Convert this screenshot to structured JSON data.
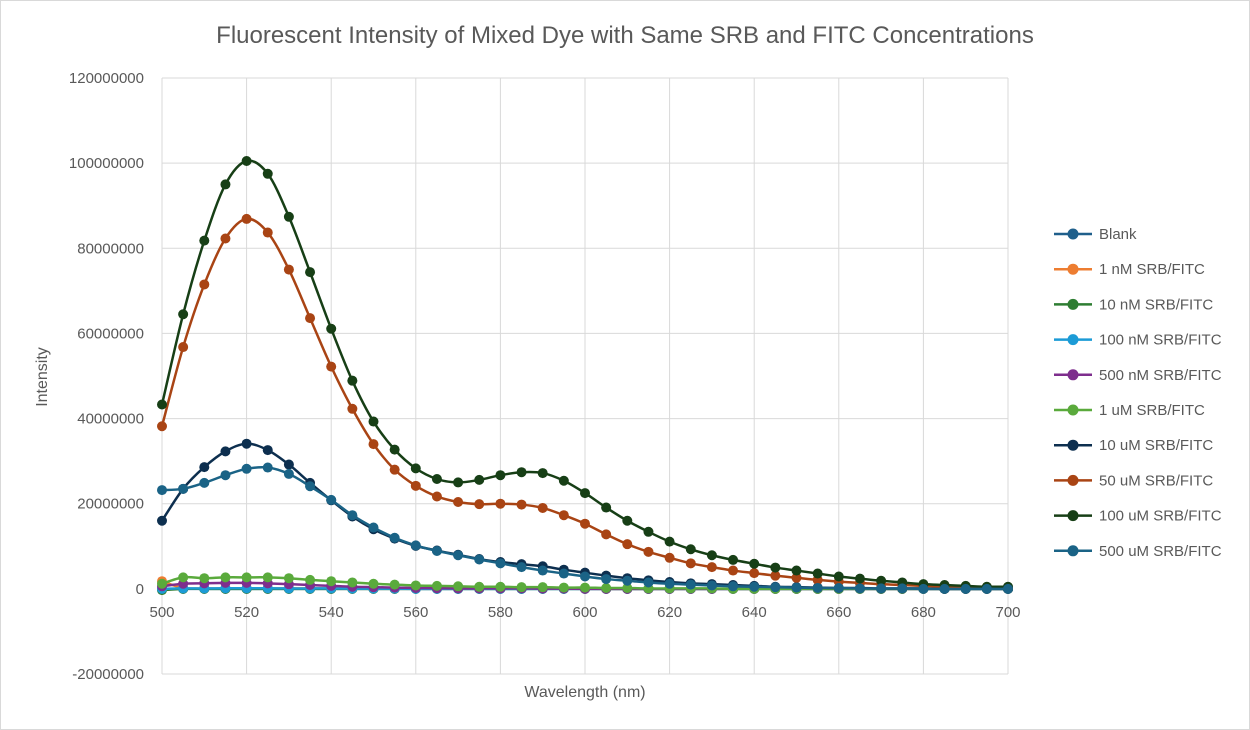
{
  "chart_data": {
    "type": "line",
    "title": "Fluorescent Intensity of Mixed Dye with Same SRB and FITC Concentrations",
    "xlabel": "Wavelength (nm)",
    "ylabel": "Intensity",
    "xlim": [
      500,
      700
    ],
    "ylim": [
      -20000000,
      120000000
    ],
    "xticks": [
      500,
      520,
      540,
      560,
      580,
      600,
      620,
      640,
      660,
      680,
      700
    ],
    "yticks": [
      -20000000,
      0,
      20000000,
      40000000,
      60000000,
      80000000,
      100000000,
      120000000
    ],
    "xtick_labels": [
      "500",
      "520",
      "540",
      "560",
      "580",
      "600",
      "620",
      "640",
      "660",
      "680",
      "700"
    ],
    "ytick_labels": [
      "-20000000",
      "0",
      "20000000",
      "40000000",
      "60000000",
      "80000000",
      "100000000",
      "120000000"
    ],
    "grid": true,
    "legend_position": "right",
    "x": [
      500,
      505,
      510,
      515,
      520,
      525,
      530,
      535,
      540,
      545,
      550,
      555,
      560,
      565,
      570,
      575,
      580,
      585,
      590,
      595,
      600,
      605,
      610,
      615,
      620,
      625,
      630,
      635,
      640,
      645,
      650,
      655,
      660,
      665,
      670,
      675,
      680,
      685,
      690,
      695,
      700
    ],
    "series": [
      {
        "name": "Blank",
        "color": "#1f5f8b",
        "values": [
          0,
          0,
          0,
          0,
          0,
          0,
          0,
          0,
          0,
          0,
          0,
          0,
          0,
          0,
          0,
          0,
          0,
          0,
          0,
          0,
          0,
          0,
          0,
          0,
          0,
          0,
          0,
          0,
          0,
          0,
          0,
          0,
          0,
          0,
          0,
          0,
          0,
          0,
          0,
          0,
          0
        ]
      },
      {
        "name": "1 nM SRB/FITC",
        "color": "#ed7d31",
        "values": [
          1800000,
          200000,
          100000,
          100000,
          100000,
          100000,
          100000,
          100000,
          100000,
          100000,
          100000,
          100000,
          50000,
          50000,
          50000,
          50000,
          50000,
          50000,
          50000,
          50000,
          50000,
          0,
          0,
          0,
          0,
          0,
          0,
          0,
          0,
          0,
          0,
          0,
          0,
          0,
          0,
          0,
          0,
          0,
          0,
          0,
          0
        ]
      },
      {
        "name": "10 nM SRB/FITC",
        "color": "#2e7d32",
        "values": [
          -300000,
          0,
          0,
          0,
          0,
          0,
          0,
          0,
          0,
          0,
          0,
          0,
          0,
          0,
          0,
          0,
          0,
          0,
          0,
          0,
          0,
          0,
          0,
          0,
          0,
          0,
          0,
          0,
          0,
          0,
          0,
          0,
          0,
          0,
          0,
          0,
          0,
          0,
          0,
          0,
          0
        ]
      },
      {
        "name": "100 nM SRB/FITC",
        "color": "#1c9bd6",
        "values": [
          0,
          100000,
          100000,
          150000,
          150000,
          150000,
          100000,
          100000,
          100000,
          50000,
          50000,
          50000,
          0,
          0,
          0,
          0,
          0,
          0,
          0,
          0,
          0,
          0,
          0,
          0,
          0,
          0,
          0,
          0,
          0,
          0,
          0,
          0,
          0,
          0,
          0,
          0,
          0,
          0,
          0,
          0,
          0
        ]
      },
      {
        "name": "500 nM SRB/FITC",
        "color": "#7e2e8d",
        "values": [
          600000,
          1200000,
          1300000,
          1400000,
          1400000,
          1300000,
          1100000,
          900000,
          700000,
          500000,
          400000,
          300000,
          200000,
          150000,
          100000,
          100000,
          100000,
          100000,
          50000,
          50000,
          0,
          0,
          0,
          0,
          0,
          0,
          0,
          0,
          0,
          0,
          0,
          0,
          0,
          0,
          0,
          0,
          0,
          0,
          0,
          0,
          0
        ]
      },
      {
        "name": "1 uM SRB/FITC",
        "color": "#5aaa3c",
        "values": [
          1200000,
          2700000,
          2500000,
          2700000,
          2700000,
          2700000,
          2500000,
          2100000,
          1800000,
          1500000,
          1200000,
          1000000,
          800000,
          700000,
          600000,
          500000,
          500000,
          400000,
          400000,
          300000,
          300000,
          200000,
          200000,
          100000,
          100000,
          100000,
          100000,
          0,
          0,
          0,
          0,
          0,
          0,
          0,
          0,
          0,
          0,
          0,
          0,
          0,
          0
        ]
      },
      {
        "name": "10 uM SRB/FITC",
        "color": "#0d2f4f",
        "values": [
          16000000,
          23500000,
          28600000,
          32300000,
          34100000,
          32600000,
          29200000,
          24900000,
          20800000,
          17000000,
          14000000,
          11800000,
          10100000,
          9000000,
          8000000,
          7000000,
          6300000,
          5800000,
          5300000,
          4500000,
          3800000,
          3100000,
          2500000,
          2000000,
          1600000,
          1300000,
          1100000,
          900000,
          700000,
          500000,
          400000,
          300000,
          200000,
          200000,
          100000,
          100000,
          100000,
          0,
          0,
          0,
          0
        ]
      },
      {
        "name": "50 uM SRB/FITC",
        "color": "#a94414",
        "values": [
          38200000,
          56800000,
          71500000,
          82300000,
          86900000,
          83700000,
          75000000,
          63600000,
          52200000,
          42300000,
          34000000,
          28000000,
          24200000,
          21700000,
          20400000,
          19900000,
          20000000,
          19800000,
          19000000,
          17300000,
          15300000,
          12800000,
          10500000,
          8700000,
          7300000,
          6000000,
          5100000,
          4300000,
          3700000,
          3100000,
          2600000,
          2100000,
          1700000,
          1400000,
          1100000,
          900000,
          700000,
          500000,
          400000,
          300000,
          200000
        ]
      },
      {
        "name": "100 uM SRB/FITC",
        "color": "#173f16",
        "values": [
          43300000,
          64500000,
          81800000,
          95000000,
          100500000,
          97500000,
          87400000,
          74400000,
          61100000,
          48900000,
          39300000,
          32700000,
          28300000,
          25800000,
          25000000,
          25600000,
          26700000,
          27400000,
          27200000,
          25400000,
          22500000,
          19100000,
          16000000,
          13400000,
          11100000,
          9300000,
          7900000,
          6800000,
          5900000,
          5000000,
          4300000,
          3600000,
          2900000,
          2400000,
          1900000,
          1500000,
          1100000,
          900000,
          700000,
          500000,
          500000
        ]
      },
      {
        "name": "500 uM SRB/FITC",
        "color": "#1a6386",
        "values": [
          23200000,
          23500000,
          24900000,
          26700000,
          28200000,
          28500000,
          27000000,
          24100000,
          20900000,
          17300000,
          14400000,
          12000000,
          10200000,
          8900000,
          7900000,
          6900000,
          6000000,
          5100000,
          4300000,
          3600000,
          2900000,
          2300000,
          1900000,
          1500000,
          1200000,
          1000000,
          800000,
          600000,
          500000,
          400000,
          300000,
          200000,
          200000,
          100000,
          100000,
          100000,
          0,
          0,
          0,
          0,
          0
        ]
      }
    ]
  }
}
